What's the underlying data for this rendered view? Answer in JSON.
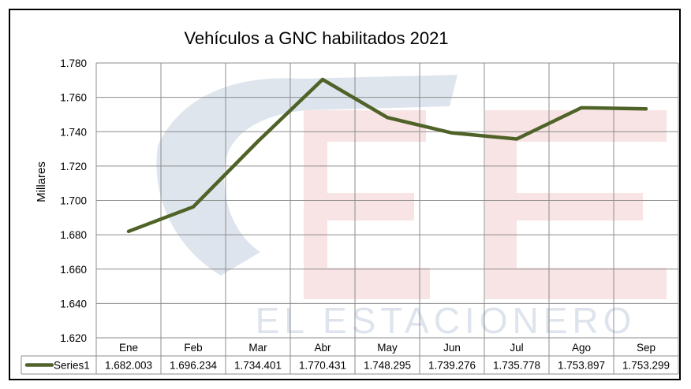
{
  "chart_data": {
    "type": "line",
    "title": "Vehículos a GNC  habilitados 2021",
    "ylabel": "Millares",
    "xlabel": "",
    "categories": [
      "Ene",
      "Feb",
      "Mar",
      "Abr",
      "May",
      "Jun",
      "Jul",
      "Ago",
      "Sep"
    ],
    "y_ticks": [
      "1.780",
      "1.760",
      "1.740",
      "1.720",
      "1.700",
      "1.680",
      "1.660",
      "1.640",
      "1.620"
    ],
    "ylim": [
      1620,
      1780
    ],
    "grid": true,
    "legend": "data-table",
    "series": [
      {
        "name": "Series1",
        "color": "#4f6228",
        "values": [
          1682.003,
          1696.234,
          1734.401,
          1770.431,
          1748.295,
          1739.276,
          1735.778,
          1753.897,
          1753.299
        ],
        "labels": [
          "1.682.003",
          "1.696.234",
          "1.734.401",
          "1.770.431",
          "1.748.295",
          "1.739.276",
          "1.735.778",
          "1.753.897",
          "1.753.299"
        ]
      }
    ],
    "watermark": "EL ESTACIONERO"
  }
}
